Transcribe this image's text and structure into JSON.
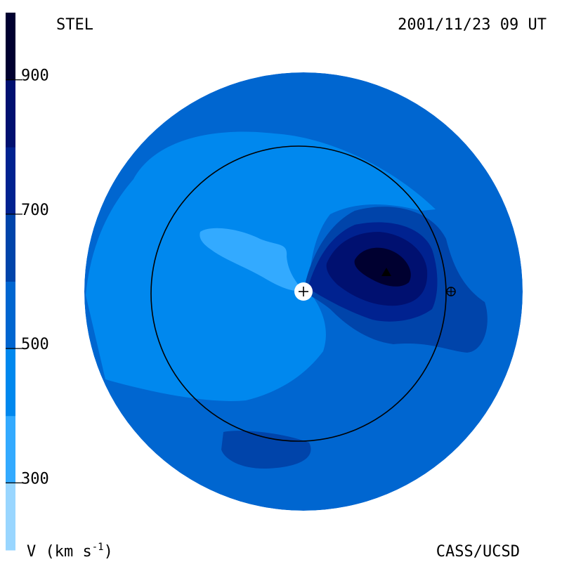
{
  "chart_data": {
    "type": "heatmap",
    "title_left": "STEL",
    "title_right": "2001/11/23 09 UT",
    "footer_right": "CASS/UCSD",
    "colorbar": {
      "label_prefix": "V (km s",
      "label_sup": "-1",
      "label_suffix": ")",
      "range": [
        200,
        1000
      ],
      "ticks": [
        {
          "value": 300,
          "label": "300"
        },
        {
          "value": 500,
          "label": "500"
        },
        {
          "value": 700,
          "label": "700"
        },
        {
          "value": 900,
          "label": "900"
        }
      ],
      "bands": [
        {
          "from": 200,
          "to": 300,
          "color": "#99d6ff"
        },
        {
          "from": 300,
          "to": 400,
          "color": "#33aaff"
        },
        {
          "from": 400,
          "to": 500,
          "color": "#0088ee"
        },
        {
          "from": 500,
          "to": 600,
          "color": "#0066d0"
        },
        {
          "from": 600,
          "to": 700,
          "color": "#0044aa"
        },
        {
          "from": 700,
          "to": 800,
          "color": "#002290"
        },
        {
          "from": 800,
          "to": 900,
          "color": "#001070"
        },
        {
          "from": 900,
          "to": 1000,
          "color": "#000030"
        }
      ]
    }
  }
}
